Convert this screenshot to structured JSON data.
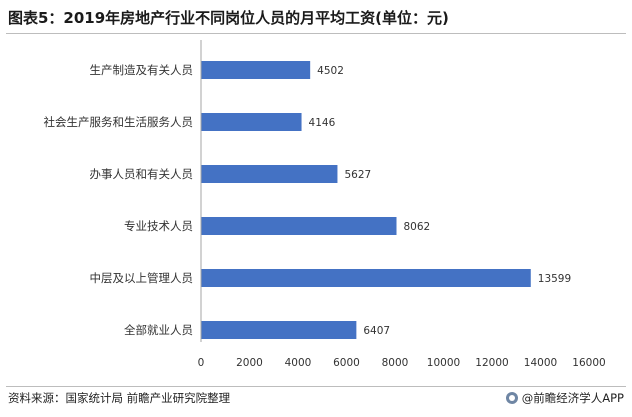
{
  "title": "图表5：2019年房地产行业不同岗位人员的月平均工资(单位：元)",
  "footer": {
    "source": "资料来源：国家统计局 前瞻产业研究院整理",
    "brand": "@前瞻经济学人APP",
    "brand_icon": "qianzhan-logo-icon"
  },
  "colors": {
    "bar": "#4472c4",
    "axis": "#a6a6a6",
    "text": "#333333"
  },
  "chart_data": {
    "type": "bar",
    "orientation": "horizontal",
    "title": "图表5：2019年房地产行业不同岗位人员的月平均工资(单位：元)",
    "categories": [
      "生产制造及有关人员",
      "社会生产服务和生活服务人员",
      "办事人员和有关人员",
      "专业技术人员",
      "中层及以上管理人员",
      "全部就业人员"
    ],
    "values": [
      4502,
      4146,
      5627,
      8062,
      13599,
      6407
    ],
    "xlim": [
      0,
      16000
    ],
    "xticks": [
      "0",
      "2000",
      "4000",
      "6000",
      "8000",
      "10000",
      "12000",
      "14000",
      "16000"
    ],
    "grid": false,
    "legend": "none"
  }
}
